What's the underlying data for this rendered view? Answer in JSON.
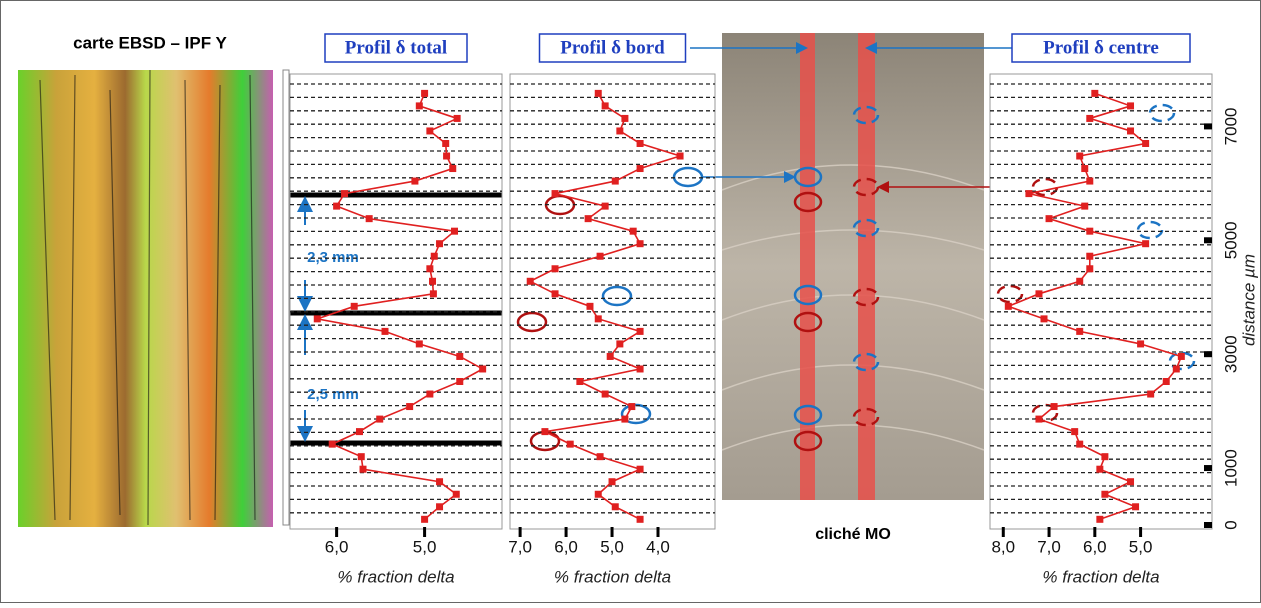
{
  "ebsd_title": "carte EBSD – IPF Y",
  "micrograph_label": "cliché MO",
  "annotations": [
    "2,3 mm",
    "2,5 mm"
  ],
  "chart_data": [
    {
      "type": "line",
      "title": "Profil δ total",
      "xlabel": "% fraction delta",
      "xlim": [
        6.53,
        4.12
      ],
      "xticks": [
        {
          "value": 6,
          "label": "6,0"
        },
        {
          "value": 5,
          "label": "5,0"
        }
      ],
      "ylim": [
        0,
        7850
      ],
      "y": [
        100,
        320,
        540,
        760,
        980,
        1200,
        1420,
        1640,
        1860,
        2080,
        2300,
        2520,
        2740,
        2960,
        3180,
        3400,
        3620,
        3840,
        4060,
        4280,
        4500,
        4720,
        4940,
        5160,
        5380,
        5600,
        5820,
        6040,
        6260,
        6480,
        6700,
        6920,
        7140,
        7360,
        7580
      ],
      "series": [
        {
          "color": "#e02020",
          "values": [
            5.0,
            4.83,
            4.64,
            4.83,
            5.7,
            5.72,
            6.05,
            5.74,
            5.51,
            5.17,
            4.94,
            4.6,
            4.34,
            4.6,
            5.06,
            5.45,
            6.22,
            5.8,
            4.9,
            4.91,
            4.94,
            4.89,
            4.83,
            4.66,
            5.63,
            6.0,
            5.91,
            5.11,
            4.68,
            4.75,
            4.76,
            4.94,
            4.63,
            5.06,
            5.0
          ]
        }
      ]
    },
    {
      "type": "line",
      "title": "Profil δ bord",
      "xlabel": "% fraction delta",
      "xlim": [
        7.22,
        2.76
      ],
      "xticks": [
        {
          "value": 7,
          "label": "7,0"
        },
        {
          "value": 6,
          "label": "6,0"
        },
        {
          "value": 5,
          "label": "5,0"
        },
        {
          "value": 4,
          "label": "4,0"
        }
      ],
      "ylim": [
        0,
        7850
      ],
      "y": [
        100,
        320,
        540,
        760,
        980,
        1200,
        1420,
        1640,
        1860,
        2080,
        2300,
        2520,
        2740,
        2960,
        3180,
        3400,
        3620,
        3840,
        4060,
        4280,
        4500,
        4720,
        4940,
        5160,
        5380,
        5600,
        5820,
        6040,
        6260,
        6480,
        6700,
        6920,
        7140,
        7360,
        7580
      ],
      "series": [
        {
          "color": "#e02020",
          "values": [
            4.39,
            4.93,
            5.3,
            5.0,
            4.39,
            5.26,
            5.91,
            6.46,
            4.72,
            4.57,
            5.15,
            5.7,
            4.39,
            5.04,
            4.83,
            4.39,
            5.3,
            5.48,
            6.24,
            6.78,
            6.24,
            5.26,
            4.39,
            4.54,
            5.52,
            5.15,
            6.24,
            4.93,
            4.39,
            3.52,
            4.39,
            4.83,
            4.72,
            5.15,
            5.3
          ]
        }
      ]
    },
    {
      "type": "line",
      "title": "Profil δ centre",
      "xlabel": "% fraction delta",
      "ylabel": "distance µm",
      "xlim": [
        8.29,
        3.44
      ],
      "xticks": [
        {
          "value": 8,
          "label": "8,0"
        },
        {
          "value": 7,
          "label": "7,0"
        },
        {
          "value": 6,
          "label": "6,0"
        },
        {
          "value": 5,
          "label": "5,0"
        }
      ],
      "ylim": [
        0,
        7850
      ],
      "yticks": [
        0,
        1000,
        3000,
        5000,
        7000
      ],
      "y": [
        100,
        320,
        540,
        760,
        980,
        1200,
        1420,
        1640,
        1860,
        2080,
        2300,
        2520,
        2740,
        2960,
        3180,
        3400,
        3620,
        3840,
        4060,
        4280,
        4500,
        4720,
        4940,
        5160,
        5380,
        5600,
        5820,
        6040,
        6260,
        6480,
        6700,
        6920,
        7140,
        7360,
        7580
      ],
      "series": [
        {
          "color": "#e02020",
          "values": [
            5.89,
            5.11,
            5.78,
            5.22,
            5.89,
            5.78,
            6.33,
            6.44,
            7.22,
            6.89,
            4.78,
            4.44,
            4.22,
            4.11,
            5.0,
            6.33,
            7.11,
            7.89,
            7.22,
            6.33,
            6.11,
            6.11,
            4.89,
            6.11,
            7.0,
            6.22,
            7.44,
            6.11,
            6.22,
            6.33,
            4.89,
            5.22,
            6.11,
            5.22,
            6.0
          ]
        }
      ]
    }
  ]
}
